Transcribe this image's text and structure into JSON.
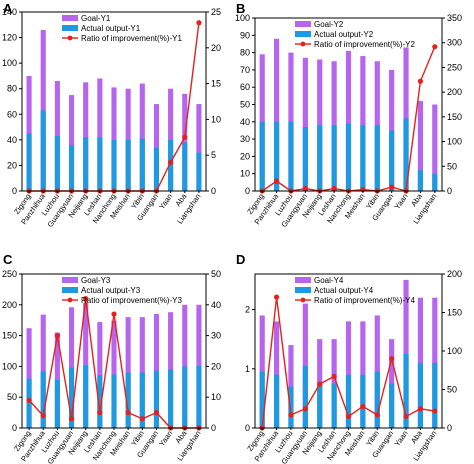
{
  "colors": {
    "goal": "#b565ee",
    "actual": "#1e9be0",
    "ratio": "#e8201c"
  },
  "chart_data": [
    {
      "type": "bar",
      "panel": "A",
      "categories": [
        "Zigong",
        "Panzhihua",
        "Luzhou",
        "Guangyuan",
        "Neijiang",
        "Leshan",
        "Nanchong",
        "Meishan",
        "Yibin",
        "Guangan",
        "Yaan",
        "Aba",
        "Liangshan"
      ],
      "series": [
        {
          "name": "Goal-Y1",
          "kind": "bar",
          "axis": "left",
          "values": [
            90,
            126,
            86,
            75,
            85,
            88,
            81,
            80,
            84,
            68,
            80,
            76,
            68
          ]
        },
        {
          "name": "Actual output-Y1",
          "kind": "bar",
          "axis": "left",
          "values": [
            45,
            63,
            43,
            36,
            42,
            42,
            40,
            40,
            41,
            34,
            40,
            38,
            30
          ]
        },
        {
          "name": "Ratio of improvement(%)-Y1",
          "kind": "line",
          "axis": "right",
          "values": [
            0,
            0,
            0,
            0,
            0,
            0,
            0,
            0,
            0,
            0,
            4,
            7.5,
            23.5
          ]
        }
      ],
      "ylim": [
        0,
        140
      ],
      "yticks": [
        0,
        20,
        40,
        60,
        80,
        100,
        120,
        140
      ],
      "y2lim": [
        0,
        25
      ],
      "y2ticks": [
        0,
        5,
        10,
        15,
        20,
        25
      ],
      "legend": "top-left"
    },
    {
      "type": "bar",
      "panel": "B",
      "categories": [
        "Zigong",
        "Panzhihua",
        "Luzhou",
        "Guangyuan",
        "Neijiang",
        "Leshan",
        "Nanchong",
        "Meishan",
        "Yibin",
        "Guangan",
        "Yaan",
        "Aba",
        "Liangshan"
      ],
      "series": [
        {
          "name": "Goal-Y2",
          "kind": "bar",
          "axis": "left",
          "values": [
            79,
            88,
            80,
            77,
            76,
            75,
            81,
            78,
            75,
            70,
            83,
            52,
            50
          ]
        },
        {
          "name": "Actual output-Y2",
          "kind": "bar",
          "axis": "left",
          "values": [
            40,
            40,
            40,
            37,
            38,
            38,
            39,
            38,
            38,
            35,
            42,
            12,
            10
          ]
        },
        {
          "name": "Ratio of improvement(%)-Y2",
          "kind": "line",
          "axis": "right",
          "values": [
            0,
            20,
            0,
            5,
            0,
            5,
            0,
            3,
            0,
            8,
            0,
            222,
            292
          ]
        }
      ],
      "ylim": [
        0,
        100
      ],
      "yticks": [
        0,
        10,
        20,
        30,
        40,
        50,
        60,
        70,
        80,
        90,
        100
      ],
      "y2lim": [
        0,
        350
      ],
      "y2ticks": [
        0,
        50,
        100,
        150,
        200,
        250,
        300,
        350
      ],
      "legend": "top-left"
    },
    {
      "type": "bar",
      "panel": "C",
      "categories": [
        "Zigong",
        "Panzhihua",
        "Luzhou",
        "Guangyuan",
        "Neijiang",
        "Leshan",
        "Nanchong",
        "Meishan",
        "Yibin",
        "Guangan",
        "Yaan",
        "Aba",
        "Liangshan"
      ],
      "series": [
        {
          "name": "Goal-Y3",
          "kind": "bar",
          "axis": "left",
          "values": [
            162,
            184,
            155,
            196,
            203,
            172,
            174,
            180,
            180,
            185,
            188,
            200,
            200
          ]
        },
        {
          "name": "Actual output-Y3",
          "kind": "bar",
          "axis": "left",
          "values": [
            80,
            92,
            78,
            98,
            102,
            86,
            87,
            90,
            90,
            93,
            95,
            100,
            101
          ]
        },
        {
          "name": "Ratio of improvement(%)-Y3",
          "kind": "line",
          "axis": "right",
          "values": [
            9,
            4,
            30,
            3,
            42,
            5,
            37,
            5,
            3,
            5,
            0,
            0,
            0
          ]
        }
      ],
      "ylim": [
        0,
        250
      ],
      "yticks": [
        0,
        50,
        100,
        150,
        200,
        250
      ],
      "y2lim": [
        0,
        50
      ],
      "y2ticks": [
        0,
        10,
        20,
        30,
        40,
        50
      ],
      "legend": "top-left"
    },
    {
      "type": "bar",
      "panel": "D",
      "categories": [
        "Zigong",
        "Panzhihua",
        "Luzhou",
        "Guangyuan",
        "Neijiang",
        "Leshan",
        "Nanchong",
        "Meishan",
        "Yibin",
        "Guangan",
        "Yaan",
        "Aba",
        "Liangshan"
      ],
      "series": [
        {
          "name": "Goal-Y4",
          "kind": "bar",
          "axis": "left",
          "values": [
            1.9,
            1.8,
            1.4,
            2.1,
            1.5,
            1.5,
            1.8,
            1.8,
            1.9,
            1.5,
            2.5,
            2.2,
            2.2
          ]
        },
        {
          "name": "Actual output-Y4",
          "kind": "bar",
          "axis": "left",
          "values": [
            0.95,
            0.9,
            0.7,
            1.05,
            0.75,
            0.75,
            0.9,
            0.9,
            0.95,
            0.75,
            1.25,
            1.1,
            1.1
          ]
        },
        {
          "name": "Ratio of improvement(%)-Y4",
          "kind": "line",
          "axis": "right",
          "values": [
            0,
            170,
            17,
            25,
            57,
            67,
            15,
            28,
            17,
            90,
            15,
            25,
            22
          ]
        }
      ],
      "ylim": [
        0,
        2.6
      ],
      "yticks": [
        0,
        1,
        2
      ],
      "y2lim": [
        0,
        200
      ],
      "y2ticks": [
        0,
        50,
        100,
        150,
        200
      ],
      "legend": "top-left"
    }
  ]
}
